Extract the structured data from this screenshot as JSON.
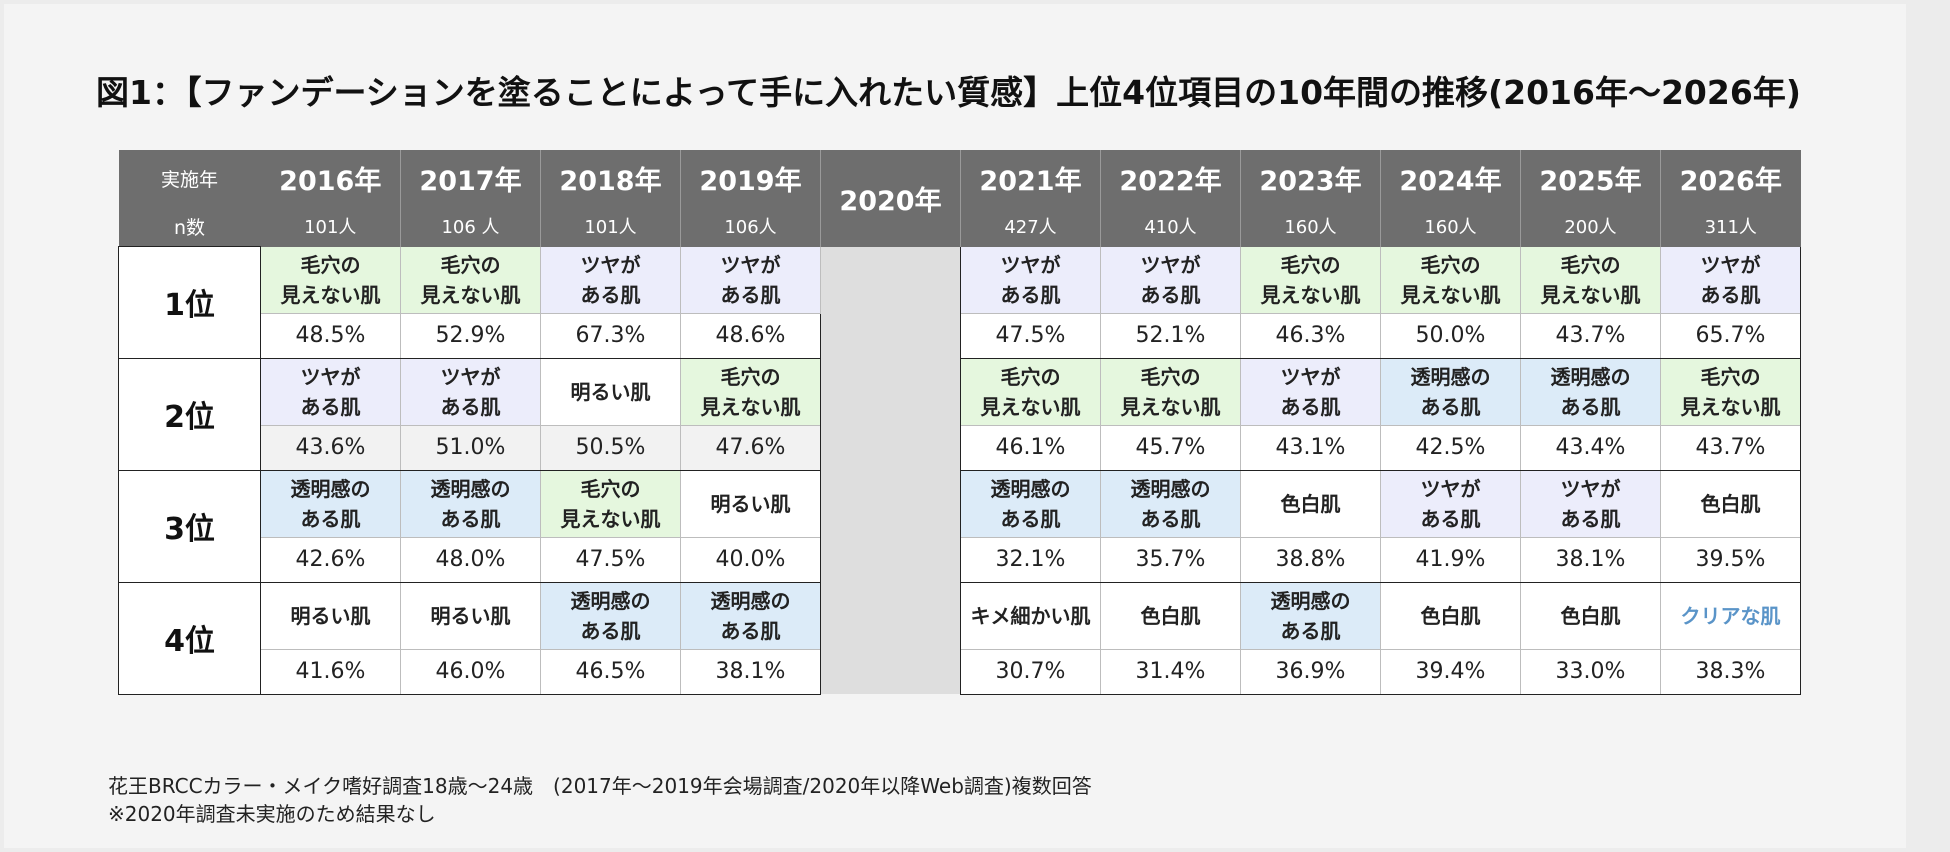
{
  "title": "図1：【ファンデーションを塗ることによって手に入れたい質感】上位4位項目の10年間の推移(2016年～2026年)",
  "header": {
    "year_label": "実施年",
    "n_label": "n数",
    "years": [
      "2016年",
      "2017年",
      "2018年",
      "2019年",
      "2020年",
      "2021年",
      "2022年",
      "2023年",
      "2024年",
      "2025年",
      "2026年"
    ],
    "n": [
      "101人",
      "106 人",
      "101人",
      "106人",
      "",
      "427人",
      "410人",
      "160人",
      "160人",
      "200人",
      "311人"
    ]
  },
  "rows": [
    {
      "rank": "1位",
      "items": [
        {
          "l1": "毛穴の",
          "l2": "見えない肌",
          "cat": "pore"
        },
        {
          "l1": "毛穴の",
          "l2": "見えない肌",
          "cat": "pore"
        },
        {
          "l1": "ツヤが",
          "l2": "ある肌",
          "cat": "tsuya"
        },
        {
          "l1": "ツヤが",
          "l2": "ある肌",
          "cat": "tsuya"
        },
        null,
        {
          "l1": "ツヤが",
          "l2": "ある肌",
          "cat": "tsuya"
        },
        {
          "l1": "ツヤが",
          "l2": "ある肌",
          "cat": "tsuya"
        },
        {
          "l1": "毛穴の",
          "l2": "見えない肌",
          "cat": "pore"
        },
        {
          "l1": "毛穴の",
          "l2": "見えない肌",
          "cat": "pore"
        },
        {
          "l1": "毛穴の",
          "l2": "見えない肌",
          "cat": "pore"
        },
        {
          "l1": "ツヤが",
          "l2": "ある肌",
          "cat": "tsuya"
        }
      ],
      "pcts": [
        "48.5%",
        "52.9%",
        "67.3%",
        "48.6%",
        "",
        "47.5%",
        "52.1%",
        "46.3%",
        "50.0%",
        "43.7%",
        "65.7%"
      ]
    },
    {
      "rank": "2位",
      "items": [
        {
          "l1": "ツヤが",
          "l2": "ある肌",
          "cat": "tsuya"
        },
        {
          "l1": "ツヤが",
          "l2": "ある肌",
          "cat": "tsuya"
        },
        {
          "l1": "明るい肌",
          "l2": "",
          "cat": "plain"
        },
        {
          "l1": "毛穴の",
          "l2": "見えない肌",
          "cat": "pore"
        },
        null,
        {
          "l1": "毛穴の",
          "l2": "見えない肌",
          "cat": "pore"
        },
        {
          "l1": "毛穴の",
          "l2": "見えない肌",
          "cat": "pore"
        },
        {
          "l1": "ツヤが",
          "l2": "ある肌",
          "cat": "tsuya"
        },
        {
          "l1": "透明感の",
          "l2": "ある肌",
          "cat": "clear"
        },
        {
          "l1": "透明感の",
          "l2": "ある肌",
          "cat": "clear"
        },
        {
          "l1": "毛穴の",
          "l2": "見えない肌",
          "cat": "pore"
        }
      ],
      "pcts": [
        "43.6%",
        "51.0%",
        "50.5%",
        "47.6%",
        "",
        "46.1%",
        "45.7%",
        "43.1%",
        "42.5%",
        "43.4%",
        "43.7%"
      ]
    },
    {
      "rank": "3位",
      "items": [
        {
          "l1": "透明感の",
          "l2": "ある肌",
          "cat": "clear"
        },
        {
          "l1": "透明感の",
          "l2": "ある肌",
          "cat": "clear"
        },
        {
          "l1": "毛穴の",
          "l2": "見えない肌",
          "cat": "pore"
        },
        {
          "l1": "明るい肌",
          "l2": "",
          "cat": "plain"
        },
        null,
        {
          "l1": "透明感の",
          "l2": "ある肌",
          "cat": "clear"
        },
        {
          "l1": "透明感の",
          "l2": "ある肌",
          "cat": "clear"
        },
        {
          "l1": "色白肌",
          "l2": "",
          "cat": "plain"
        },
        {
          "l1": "ツヤが",
          "l2": "ある肌",
          "cat": "tsuya"
        },
        {
          "l1": "ツヤが",
          "l2": "ある肌",
          "cat": "tsuya"
        },
        {
          "l1": "色白肌",
          "l2": "",
          "cat": "plain"
        }
      ],
      "pcts": [
        "42.6%",
        "48.0%",
        "47.5%",
        "40.0%",
        "",
        "32.1%",
        "35.7%",
        "38.8%",
        "41.9%",
        "38.1%",
        "39.5%"
      ]
    },
    {
      "rank": "4位",
      "items": [
        {
          "l1": "明るい肌",
          "l2": "",
          "cat": "plain"
        },
        {
          "l1": "明るい肌",
          "l2": "",
          "cat": "plain"
        },
        {
          "l1": "透明感の",
          "l2": "ある肌",
          "cat": "clear"
        },
        {
          "l1": "透明感の",
          "l2": "ある肌",
          "cat": "clear"
        },
        null,
        {
          "l1": "キメ細かい肌",
          "l2": "",
          "cat": "plain"
        },
        {
          "l1": "色白肌",
          "l2": "",
          "cat": "plain"
        },
        {
          "l1": "透明感の",
          "l2": "ある肌",
          "cat": "clear"
        },
        {
          "l1": "色白肌",
          "l2": "",
          "cat": "plain"
        },
        {
          "l1": "色白肌",
          "l2": "",
          "cat": "plain"
        },
        {
          "l1": "クリアな肌",
          "l2": "",
          "cat": "plain-blue"
        }
      ],
      "pcts": [
        "41.6%",
        "46.0%",
        "46.5%",
        "38.1%",
        "",
        "30.7%",
        "31.4%",
        "36.9%",
        "39.4%",
        "33.0%",
        "38.3%"
      ]
    }
  ],
  "colors": {
    "pore": "#e5f7de",
    "tsuya": "#ecedfb",
    "clear": "#dcebf8",
    "header": "#6e6e6e",
    "gap2020": "#dedede",
    "clear_text": "#5a94c8"
  },
  "footnote": {
    "line1": "花王BRCCカラー・メイク嗜好調査18歳～24歳　(2017年～2019年会場調査/2020年以降Web調査)複数回答",
    "line2": "※2020年調査未実施のため結果なし"
  },
  "chart_data": {
    "type": "table",
    "title": "図1：【ファンデーションを塗ることによって手に入れたい質感】上位4位項目の10年間の推移(2016年～2026年)",
    "columns": [
      "2016年",
      "2017年",
      "2018年",
      "2019年",
      "2020年",
      "2021年",
      "2022年",
      "2023年",
      "2024年",
      "2025年",
      "2026年"
    ],
    "n": [
      "101人",
      "106 人",
      "101人",
      "106人",
      "",
      "427人",
      "410人",
      "160人",
      "160人",
      "200人",
      "311人"
    ],
    "ranks": [
      {
        "rank": "1位",
        "items": [
          "毛穴の見えない肌",
          "毛穴の見えない肌",
          "ツヤがある肌",
          "ツヤがある肌",
          "",
          "ツヤがある肌",
          "ツヤがある肌",
          "毛穴の見えない肌",
          "毛穴の見えない肌",
          "毛穴の見えない肌",
          "ツヤがある肌"
        ],
        "values": [
          48.5,
          52.9,
          67.3,
          48.6,
          null,
          47.5,
          52.1,
          46.3,
          50.0,
          43.7,
          65.7
        ]
      },
      {
        "rank": "2位",
        "items": [
          "ツヤがある肌",
          "ツヤがある肌",
          "明るい肌",
          "毛穴の見えない肌",
          "",
          "毛穴の見えない肌",
          "毛穴の見えない肌",
          "ツヤがある肌",
          "透明感のある肌",
          "透明感のある肌",
          "毛穴の見えない肌"
        ],
        "values": [
          43.6,
          51.0,
          50.5,
          47.6,
          null,
          46.1,
          45.7,
          43.1,
          42.5,
          43.4,
          43.7
        ]
      },
      {
        "rank": "3位",
        "items": [
          "透明感のある肌",
          "透明感のある肌",
          "毛穴の見えない肌",
          "明るい肌",
          "",
          "透明感のある肌",
          "透明感のある肌",
          "色白肌",
          "ツヤがある肌",
          "ツヤがある肌",
          "色白肌"
        ],
        "values": [
          42.6,
          48.0,
          47.5,
          40.0,
          null,
          32.1,
          35.7,
          38.8,
          41.9,
          38.1,
          39.5
        ]
      },
      {
        "rank": "4位",
        "items": [
          "明るい肌",
          "明るい肌",
          "透明感のある肌",
          "透明感のある肌",
          "",
          "キメ細かい肌",
          "色白肌",
          "透明感のある肌",
          "色白肌",
          "色白肌",
          "クリアな肌"
        ],
        "values": [
          41.6,
          46.0,
          46.5,
          38.1,
          null,
          30.7,
          31.4,
          36.9,
          39.4,
          33.0,
          38.3
        ]
      }
    ]
  }
}
